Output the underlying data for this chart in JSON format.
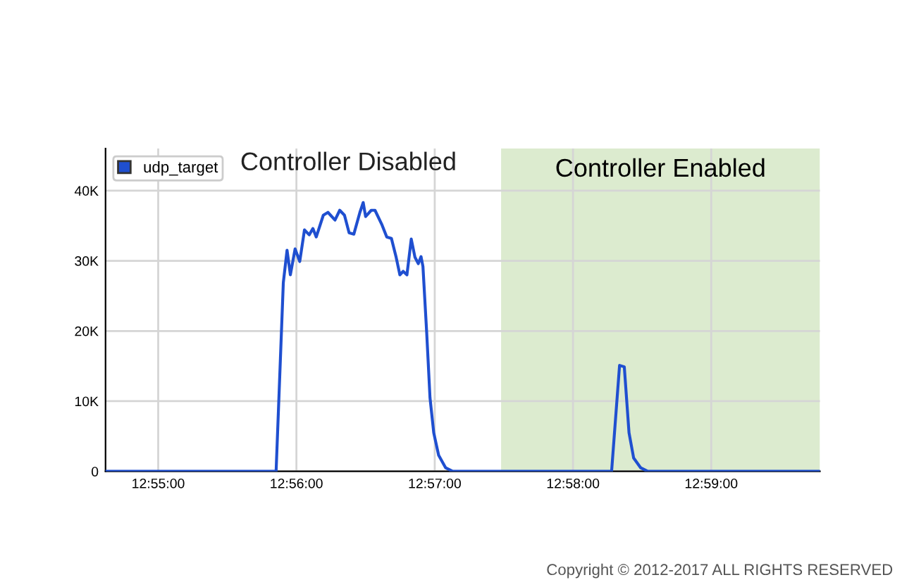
{
  "chart_data": {
    "type": "line",
    "x": [
      12.91032,
      12.93088,
      12.93175,
      12.9322,
      12.9326,
      12.93317,
      12.93373,
      12.9343,
      12.93487,
      12.93532,
      12.93572,
      12.93657,
      12.93713,
      12.93798,
      12.93855,
      12.93912,
      12.93968,
      12.94025,
      12.94098,
      12.94138,
      12.94167,
      12.94235,
      12.9428,
      12.94365,
      12.94422,
      12.94478,
      12.94535,
      12.9458,
      12.9462,
      12.94665,
      12.94717,
      12.94762,
      12.94802,
      12.94835,
      12.94858,
      12.94903,
      12.94943,
      12.94988,
      12.95047,
      12.95132,
      12.95217,
      12.97132,
      12.97228,
      12.97285,
      12.97342,
      12.97398,
      12.97483,
      12.97568,
      12.99643
    ],
    "series": [
      {
        "name": "udp_target",
        "color": "#1f4fd0",
        "values": [
          0,
          0,
          26900,
          31500,
          28000,
          31700,
          29900,
          34400,
          33700,
          34600,
          33400,
          36500,
          36900,
          35800,
          37200,
          36500,
          34000,
          33800,
          36900,
          38300,
          36300,
          37200,
          37200,
          35100,
          33400,
          33200,
          30500,
          28000,
          28500,
          28000,
          33100,
          30500,
          29600,
          30600,
          29200,
          19800,
          10500,
          5500,
          2300,
          500,
          0,
          0,
          15100,
          14900,
          5500,
          1900,
          500,
          0,
          0
        ]
      }
    ],
    "xlim": [
      12.91032,
      12.99643
    ],
    "xticks": [
      {
        "value": 12.91667,
        "label": "12:55:00"
      },
      {
        "value": 12.93333,
        "label": "12:56:00"
      },
      {
        "value": 12.95,
        "label": "12:57:00"
      },
      {
        "value": 12.96667,
        "label": "12:58:00"
      },
      {
        "value": 12.98333,
        "label": "12:59:00"
      }
    ],
    "ylim": [
      0,
      46000
    ],
    "yticks": [
      0,
      {
        "value": 10000,
        "label": "10K"
      },
      {
        "value": 20000,
        "label": "20K"
      },
      {
        "value": 30000,
        "label": "30K"
      },
      {
        "value": 40000,
        "label": "40K"
      }
    ],
    "bands": [
      {
        "axis": "x",
        "from": 12.958,
        "to": 12.99643,
        "label": "Controller Enabled",
        "color": "#dcebcf"
      }
    ],
    "annotations": [
      "Controller Disabled",
      "Copyright © 2012-2017 ALL RIGHTS RESERVED"
    ],
    "grid": true,
    "legend": "top left",
    "marker": "none",
    "line_style": "solid"
  }
}
